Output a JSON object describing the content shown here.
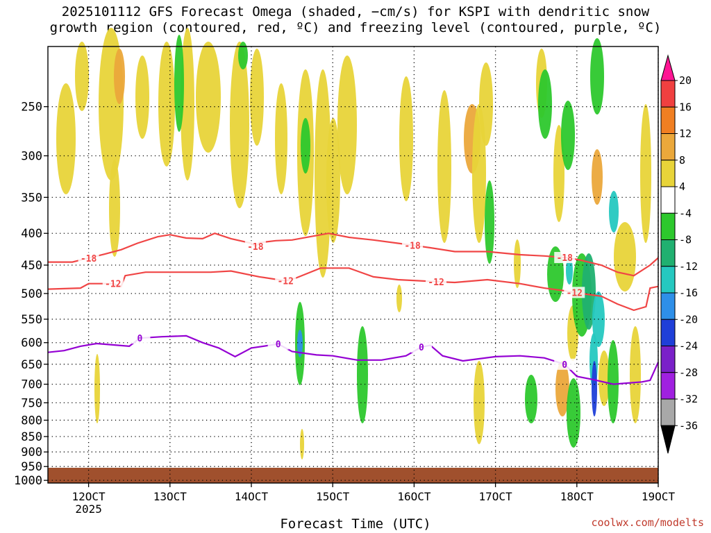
{
  "title_line1": "2025101112 GFS Forecast Omega (shaded, −cm/s) for KSPI with dendritic snow",
  "title_line2": "growth region (contoured, red, ºC) and freezing level (contoured, purple, ºC)",
  "watermark": "coolwx.com/modelts",
  "chart_data": {
    "type": "heatmap",
    "title": "2025101112 GFS Forecast Omega (shaded, −cm/s) for KSPI with dendritic snow growth region (contoured, red, ºC) and freezing level (contoured, purple, ºC)",
    "xlabel": "Forecast Time (UTC)",
    "ylabel": "",
    "x_range": [
      "2025-10-11 12",
      "2025-10-19 00"
    ],
    "y_scale": "log pressure",
    "y_range": [
      1010,
      200
    ],
    "x_ticks": [
      {
        "day": 12,
        "label": "12OCT",
        "sublabel": "2025"
      },
      {
        "day": 13,
        "label": "13OCT"
      },
      {
        "day": 14,
        "label": "14OCT"
      },
      {
        "day": 15,
        "label": "15OCT"
      },
      {
        "day": 16,
        "label": "16OCT"
      },
      {
        "day": 17,
        "label": "17OCT"
      },
      {
        "day": 18,
        "label": "18OCT"
      },
      {
        "day": 19,
        "label": "19OCT"
      }
    ],
    "y_ticks": [
      250,
      300,
      350,
      400,
      450,
      500,
      550,
      600,
      650,
      700,
      750,
      800,
      850,
      900,
      950,
      1000
    ],
    "grid": true,
    "colorbar": {
      "levels": [
        20,
        16,
        12,
        8,
        4,
        -4,
        -8,
        -12,
        -16,
        -20,
        -24,
        -28,
        -32,
        -36
      ],
      "colors": [
        "#ff1493",
        "#f04040",
        "#f07f22",
        "#eba83b",
        "#e8d439",
        "#ffffff",
        "#2dc82d",
        "#20b070",
        "#25c8c0",
        "#2e8fe8",
        "#1f3fd8",
        "#7a20c8",
        "#a020e0",
        "#a8a8a8",
        "#000000"
      ]
    },
    "contours": {
      "dendritic_neg18": {
        "color": "#f04545",
        "label": "-18",
        "label_days": [
          12.0,
          14.05,
          15.98,
          17.85
        ],
        "points": [
          [
            11.5,
            445
          ],
          [
            11.8,
            445
          ],
          [
            11.95,
            440
          ],
          [
            12.2,
            432
          ],
          [
            12.4,
            425
          ],
          [
            12.6,
            415
          ],
          [
            12.85,
            405
          ],
          [
            13.0,
            402
          ],
          [
            13.2,
            407
          ],
          [
            13.4,
            408
          ],
          [
            13.55,
            400
          ],
          [
            13.75,
            408
          ],
          [
            14.0,
            415
          ],
          [
            14.05,
            420
          ],
          [
            14.1,
            414
          ],
          [
            14.3,
            411
          ],
          [
            14.5,
            410
          ],
          [
            14.95,
            400
          ],
          [
            15.2,
            406
          ],
          [
            15.5,
            410
          ],
          [
            15.8,
            415
          ],
          [
            15.98,
            418
          ],
          [
            16.2,
            422
          ],
          [
            16.5,
            428
          ],
          [
            16.9,
            428
          ],
          [
            17.3,
            433
          ],
          [
            17.6,
            435
          ],
          [
            17.9,
            438
          ],
          [
            18.05,
            442
          ],
          [
            18.3,
            450
          ],
          [
            18.5,
            462
          ],
          [
            18.7,
            468
          ],
          [
            18.9,
            450
          ],
          [
            19.0,
            438
          ]
        ]
      },
      "dendritic_neg12": {
        "color": "#f04545",
        "label": "-12",
        "label_days": [
          12.3,
          14.42,
          16.27,
          17.97
        ],
        "points": [
          [
            11.5,
            492
          ],
          [
            11.9,
            490
          ],
          [
            12.0,
            482
          ],
          [
            12.3,
            482
          ],
          [
            12.4,
            487
          ],
          [
            12.45,
            468
          ],
          [
            12.7,
            462
          ],
          [
            13.1,
            462
          ],
          [
            13.5,
            462
          ],
          [
            13.75,
            460
          ],
          [
            14.1,
            470
          ],
          [
            14.42,
            477
          ],
          [
            14.55,
            472
          ],
          [
            14.85,
            455
          ],
          [
            15.2,
            455
          ],
          [
            15.5,
            470
          ],
          [
            15.8,
            475
          ],
          [
            16.2,
            478
          ],
          [
            16.5,
            480
          ],
          [
            16.9,
            475
          ],
          [
            17.3,
            482
          ],
          [
            17.6,
            490
          ],
          [
            17.85,
            495
          ],
          [
            18.05,
            500
          ],
          [
            18.3,
            505
          ],
          [
            18.5,
            520
          ],
          [
            18.7,
            532
          ],
          [
            18.85,
            525
          ],
          [
            18.9,
            490
          ],
          [
            19.0,
            487
          ]
        ]
      },
      "freezing_0": {
        "color": "#9400d3",
        "label": "0",
        "label_days": [
          12.63,
          14.33,
          16.09,
          17.85
        ],
        "points": [
          [
            11.5,
            622
          ],
          [
            11.7,
            618
          ],
          [
            11.9,
            608
          ],
          [
            12.1,
            602
          ],
          [
            12.5,
            608
          ],
          [
            12.63,
            590
          ],
          [
            12.9,
            587
          ],
          [
            13.2,
            585
          ],
          [
            13.4,
            600
          ],
          [
            13.6,
            612
          ],
          [
            13.8,
            632
          ],
          [
            14.0,
            612
          ],
          [
            14.33,
            603
          ],
          [
            14.5,
            620
          ],
          [
            14.8,
            628
          ],
          [
            15.0,
            630
          ],
          [
            15.3,
            640
          ],
          [
            15.6,
            640
          ],
          [
            15.9,
            630
          ],
          [
            16.09,
            610
          ],
          [
            16.2,
            606
          ],
          [
            16.35,
            630
          ],
          [
            16.6,
            642
          ],
          [
            17.0,
            632
          ],
          [
            17.3,
            630
          ],
          [
            17.6,
            635
          ],
          [
            17.85,
            650
          ],
          [
            18.0,
            680
          ],
          [
            18.2,
            688
          ],
          [
            18.45,
            700
          ],
          [
            18.8,
            694
          ],
          [
            18.9,
            690
          ],
          [
            19.0,
            645
          ]
        ]
      }
    }
  },
  "legend_labels": [
    "20",
    "16",
    "12",
    "8",
    "4",
    "-4",
    "-8",
    "-12",
    "-16",
    "-20",
    "-24",
    "-28",
    "-32",
    "-36"
  ]
}
